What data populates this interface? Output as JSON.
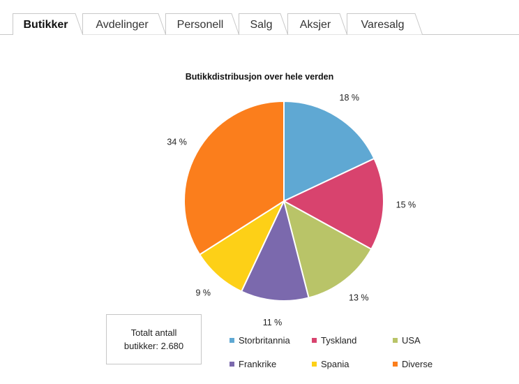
{
  "tabs": [
    {
      "label": "Butikker",
      "active": true
    },
    {
      "label": "Avdelinger",
      "active": false
    },
    {
      "label": "Personell",
      "active": false
    },
    {
      "label": "Salg",
      "active": false
    },
    {
      "label": "Aksjer",
      "active": false
    },
    {
      "label": "Varesalg",
      "active": false
    }
  ],
  "total_box": {
    "line1": "Totalt antall",
    "line2": "butikker: 2.680"
  },
  "colors": {
    "Storbritannia": "#5fa8d3",
    "Tyskland": "#d8436e",
    "USA": "#b9c468",
    "Frankrike": "#7b69ad",
    "Spania": "#fdd017",
    "Diverse": "#fb7e1c",
    "tab_border": "#c8c8c8"
  },
  "chart_data": {
    "type": "pie",
    "title": "Butikkdistribusjon over hele verden",
    "categories": [
      "Storbritannia",
      "Tyskland",
      "USA",
      "Frankrike",
      "Spania",
      "Diverse"
    ],
    "values": [
      18,
      15,
      13,
      11,
      9,
      34
    ],
    "labels": [
      "18 %",
      "15 %",
      "13 %",
      "11 %",
      "9 %",
      "34 %"
    ],
    "legend_position": "bottom"
  }
}
